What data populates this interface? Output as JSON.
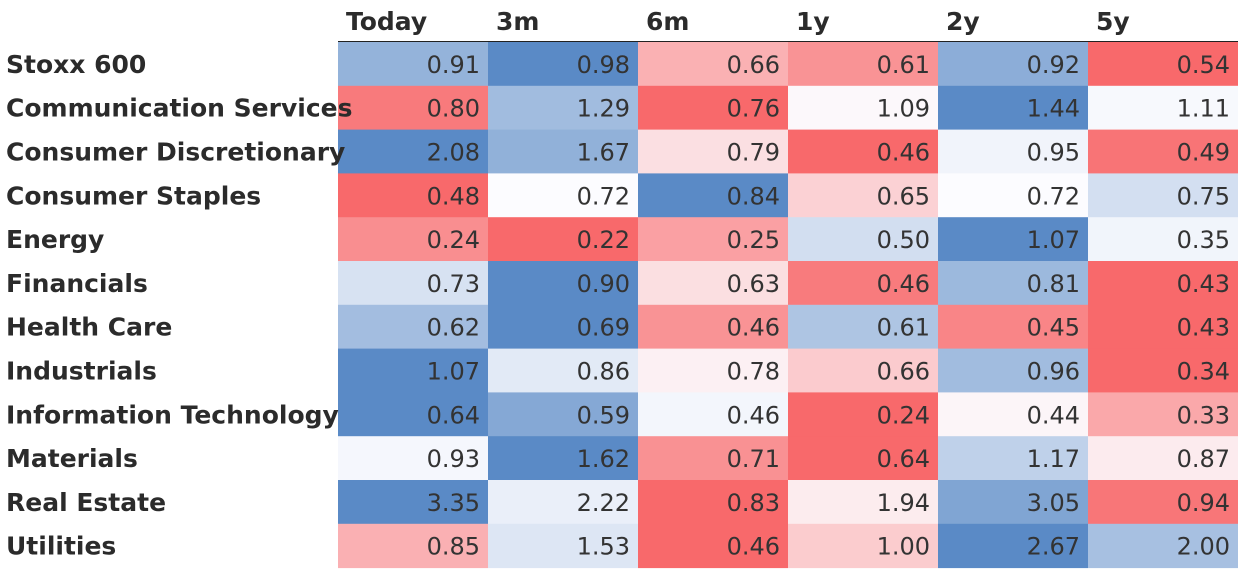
{
  "chart_data": {
    "type": "heatmap",
    "title": "",
    "columns": [
      "Today",
      "3m",
      "6m",
      "1y",
      "2y",
      "5y"
    ],
    "rows": [
      "Stoxx 600",
      "Communication Services",
      "Consumer Discretionary",
      "Consumer Staples",
      "Energy",
      "Financials",
      "Health Care",
      "Industrials",
      "Information Technology",
      "Materials",
      "Real Estate",
      "Utilities"
    ],
    "values": [
      [
        0.91,
        0.98,
        0.66,
        0.61,
        0.92,
        0.54
      ],
      [
        0.8,
        1.29,
        0.76,
        1.09,
        1.44,
        1.11
      ],
      [
        2.08,
        1.67,
        0.79,
        0.46,
        0.95,
        0.49
      ],
      [
        0.48,
        0.72,
        0.84,
        0.65,
        0.72,
        0.75
      ],
      [
        0.24,
        0.22,
        0.25,
        0.5,
        1.07,
        0.35
      ],
      [
        0.73,
        0.9,
        0.63,
        0.46,
        0.81,
        0.43
      ],
      [
        0.62,
        0.69,
        0.46,
        0.61,
        0.45,
        0.43
      ],
      [
        1.07,
        0.86,
        0.78,
        0.66,
        0.96,
        0.34
      ],
      [
        0.64,
        0.59,
        0.46,
        0.24,
        0.44,
        0.33
      ],
      [
        0.93,
        1.62,
        0.71,
        0.64,
        1.17,
        0.87
      ],
      [
        3.35,
        2.22,
        0.83,
        1.94,
        3.05,
        0.94
      ],
      [
        0.85,
        1.53,
        0.46,
        1.0,
        2.67,
        2.0
      ]
    ],
    "color_scale": "per-row diverging, red (low) to white to blue (high)",
    "colors": {
      "low": "#f8696b",
      "mid": "#fcfcff",
      "high": "#5a8ac6"
    },
    "legend": "none",
    "grid": false
  }
}
